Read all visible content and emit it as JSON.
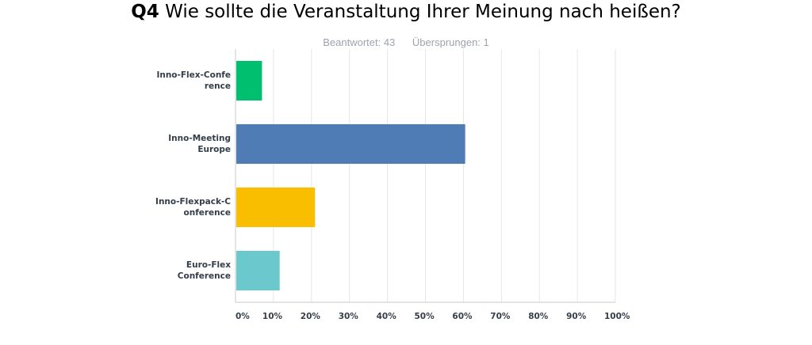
{
  "title": {
    "question_number": "Q4",
    "text": "Wie sollte die Veranstaltung Ihrer Meinung nach heißen?"
  },
  "stats": {
    "answered": "Beantwortet: 43",
    "skipped": "Übersprungen: 1"
  },
  "colors": {
    "grid": "#e4e6e8",
    "axis": "#c6c9cc",
    "text": "#333e48"
  },
  "chart_data": {
    "type": "bar",
    "orientation": "horizontal",
    "categories": [
      "Inno-Flex-Confe\nrence",
      "Inno-Meeting\nEurope",
      "Inno-Flexpack-C\nonference",
      "Euro-Flex\nConference"
    ],
    "values": [
      6.98,
      60.47,
      20.93,
      11.63
    ],
    "colors": [
      "#00bf6f",
      "#507cb6",
      "#f9be00",
      "#6bc8cd"
    ],
    "xlim": [
      0,
      100
    ],
    "xticks": [
      "0%",
      "10%",
      "20%",
      "30%",
      "40%",
      "50%",
      "60%",
      "70%",
      "80%",
      "90%",
      "100%"
    ],
    "xlabel": "",
    "ylabel": "",
    "grid": true
  }
}
